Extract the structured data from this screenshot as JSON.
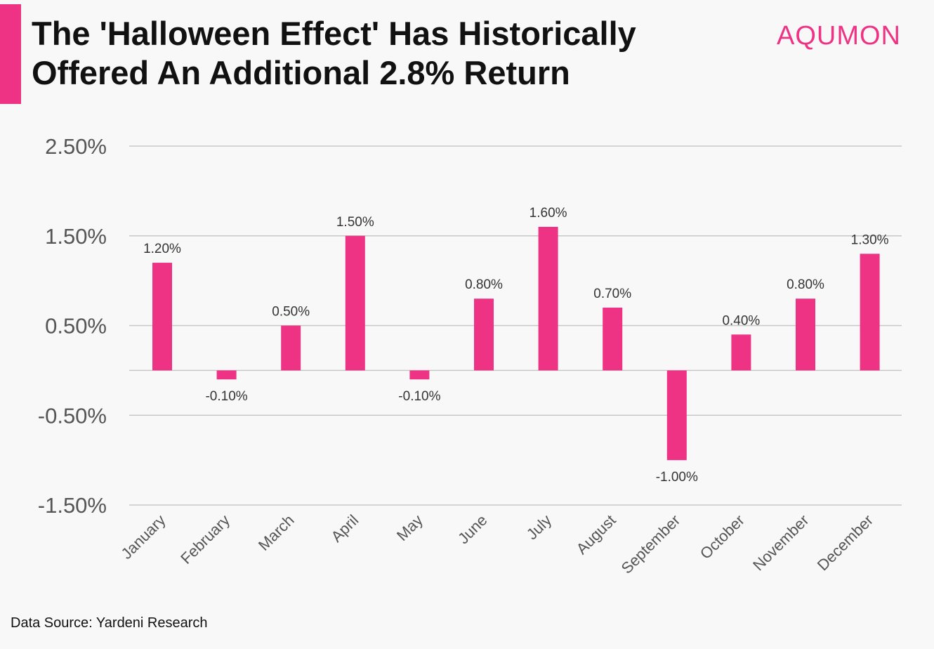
{
  "header": {
    "title_line1": "The 'Halloween Effect' Has Historically",
    "title_line2": "Offered An Additional 2.8% Return",
    "brand": "AQUMON"
  },
  "footer": {
    "source": "Data Source: Yardeni Research"
  },
  "colors": {
    "accent": "#ee3384",
    "bar": "#ee3384",
    "grid": "#c8c8c8",
    "tick_text": "#555555",
    "label_text": "#333333"
  },
  "chart_data": {
    "type": "bar",
    "title": "The 'Halloween Effect' Has Historically Offered An Additional 2.8% Return",
    "xlabel": "",
    "ylabel": "",
    "categories": [
      "January",
      "February",
      "March",
      "April",
      "May",
      "June",
      "July",
      "August",
      "September",
      "October",
      "November",
      "December"
    ],
    "values": [
      1.2,
      -0.1,
      0.5,
      1.5,
      -0.1,
      0.8,
      1.6,
      0.7,
      -1.0,
      0.4,
      0.8,
      1.3
    ],
    "value_labels": [
      "1.20%",
      "-0.10%",
      "0.50%",
      "1.50%",
      "-0.10%",
      "0.80%",
      "1.60%",
      "0.70%",
      "-1.00%",
      "0.40%",
      "0.80%",
      "1.30%"
    ],
    "yticks": [
      2.5,
      1.5,
      0.5,
      -0.5,
      -1.5
    ],
    "ytick_labels": [
      "2.50%",
      "1.50%",
      "0.50%",
      "-0.50%",
      "-1.50%"
    ],
    "ylim": [
      -1.5,
      2.5
    ],
    "grid": true,
    "legend": "none"
  }
}
